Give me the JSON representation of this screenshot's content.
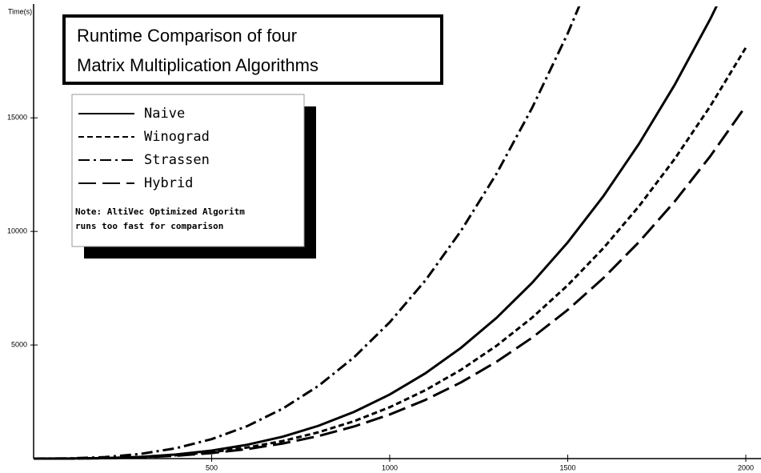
{
  "chart_data": {
    "type": "line",
    "title": [
      "Runtime Comparison of four",
      "Matrix Multiplication Algorithms"
    ],
    "y_label": "Time(s)",
    "note": [
      "Note: AltiVec Optimized Algoritm",
      "runs too fast for comparison"
    ],
    "x": [
      0,
      100,
      200,
      300,
      400,
      500,
      600,
      700,
      800,
      900,
      1000,
      1100,
      1200,
      1300,
      1400,
      1500,
      1600,
      1700,
      1800,
      1900,
      2000
    ],
    "series": [
      {
        "name": "Naive",
        "color": "#000000",
        "dash": "solid",
        "values": [
          0,
          3,
          23,
          76,
          180,
          353,
          609,
          967,
          1444,
          2056,
          2820,
          3753,
          4873,
          6196,
          7738,
          9518,
          11551,
          13855,
          16446,
          19342,
          22560
        ]
      },
      {
        "name": "Winograd",
        "color": "#000000",
        "dash": "dashed",
        "values": [
          0,
          2,
          18,
          61,
          145,
          283,
          488,
          776,
          1158,
          1648,
          2261,
          3009,
          3907,
          4967,
          6204,
          7631,
          9261,
          11108,
          13186,
          15508,
          18088
        ]
      },
      {
        "name": "Strassen",
        "color": "#000000",
        "dash": "dashdot",
        "values": [
          0,
          9,
          65,
          205,
          457,
          856,
          1430,
          2204,
          3202,
          4462,
          6000,
          7840,
          10020,
          12540,
          15440,
          18720,
          22440,
          null,
          null,
          null,
          null
        ]
      },
      {
        "name": "Hybrid",
        "color": "#000000",
        "dash": "longdash",
        "values": [
          0,
          2,
          16,
          52,
          124,
          243,
          419,
          665,
          993,
          1414,
          1940,
          2582,
          3352,
          4262,
          5323,
          6548,
          7946,
          9531,
          11313,
          13306,
          15520
        ]
      }
    ],
    "xlim": [
      0,
      2000
    ],
    "ylim": [
      0,
      19800
    ],
    "xticks": [
      500,
      1000,
      1500,
      2000
    ],
    "yticks": [
      5000,
      10000,
      15000
    ]
  }
}
